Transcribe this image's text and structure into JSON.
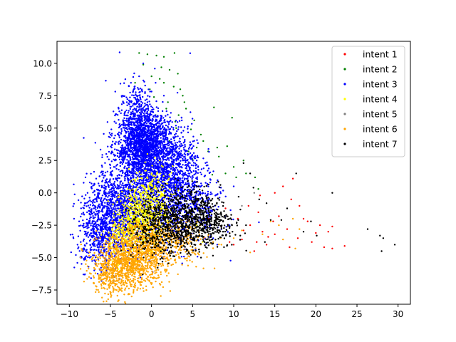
{
  "chart_data": {
    "type": "scatter",
    "title": "",
    "xlabel": "",
    "ylabel": "",
    "xlim": [
      -11.5,
      31.5
    ],
    "ylim": [
      -8.6,
      11.7
    ],
    "xticks": [
      -10,
      -5,
      0,
      5,
      10,
      15,
      20,
      25,
      30
    ],
    "yticks": [
      -7.5,
      -5.0,
      -2.5,
      0.0,
      2.5,
      5.0,
      7.5,
      10.0
    ],
    "xtick_labels": [
      "−10",
      "−5",
      "0",
      "5",
      "10",
      "15",
      "20",
      "25",
      "30"
    ],
    "ytick_labels": [
      "−7.5",
      "−5.0",
      "−2.5",
      "0.0",
      "2.5",
      "5.0",
      "7.5",
      "10.0"
    ],
    "grid": false,
    "legend_position": "top-right",
    "series": [
      {
        "name": "intent 1",
        "color": "#ff0000",
        "points": [
          [
            12.0,
            -2.5
          ],
          [
            13.5,
            -3.0
          ],
          [
            15.0,
            -3.2
          ],
          [
            16.5,
            -2.8
          ],
          [
            17.8,
            -3.5
          ],
          [
            19.0,
            -2.2
          ],
          [
            20.0,
            -3.1
          ],
          [
            21.0,
            -4.2
          ],
          [
            22.0,
            -4.3
          ],
          [
            23.5,
            -4.1
          ],
          [
            14.0,
            -4.0
          ],
          [
            11.0,
            -3.6
          ],
          [
            9.5,
            -3.8
          ],
          [
            10.5,
            -2.0
          ],
          [
            13.0,
            -1.5
          ],
          [
            15.5,
            -1.8
          ],
          [
            17.0,
            -0.5
          ],
          [
            16.0,
            0.5
          ],
          [
            18.5,
            -2.0
          ],
          [
            12.5,
            -4.5
          ],
          [
            11.8,
            -1.0
          ],
          [
            14.8,
            -2.2
          ],
          [
            9.0,
            -1.2
          ],
          [
            8.0,
            -3.0
          ],
          [
            7.0,
            -2.0
          ],
          [
            6.5,
            -3.5
          ],
          [
            10.0,
            -4.0
          ],
          [
            12.8,
            -3.8
          ],
          [
            16.8,
            -4.2
          ],
          [
            19.5,
            -3.8
          ],
          [
            20.5,
            -2.5
          ],
          [
            18.0,
            -1.0
          ],
          [
            15.0,
            0.0
          ],
          [
            13.2,
            -0.2
          ],
          [
            17.2,
            1.1
          ],
          [
            21.5,
            -3.0
          ],
          [
            22.0,
            -2.6
          ],
          [
            8.5,
            -2.6
          ],
          [
            11.2,
            -2.9
          ],
          [
            14.2,
            -3.4
          ]
        ],
        "clusters": []
      },
      {
        "name": "intent 2",
        "color": "#008000",
        "points": [
          [
            -1.5,
            10.8
          ],
          [
            -0.5,
            10.7
          ],
          [
            0.6,
            10.6
          ],
          [
            1.5,
            10.5
          ],
          [
            2.8,
            10.8
          ],
          [
            -1.0,
            9.9
          ],
          [
            1.2,
            9.7
          ],
          [
            2.2,
            9.5
          ],
          [
            3.2,
            9.2
          ],
          [
            0.0,
            9.0
          ],
          [
            1.5,
            8.5
          ],
          [
            2.7,
            8.2
          ],
          [
            -0.2,
            8.0
          ],
          [
            3.5,
            8.0
          ],
          [
            0.3,
            7.4
          ],
          [
            2.0,
            7.0
          ],
          [
            4.0,
            7.0
          ],
          [
            3.3,
            6.0
          ],
          [
            5.2,
            5.6
          ],
          [
            4.8,
            4.9
          ],
          [
            7.6,
            6.6
          ],
          [
            9.8,
            5.8
          ],
          [
            6.0,
            4.5
          ],
          [
            1.8,
            6.5
          ],
          [
            3.0,
            5.0
          ],
          [
            2.2,
            4.0
          ],
          [
            5.5,
            3.5
          ],
          [
            6.9,
            3.2
          ],
          [
            9.0,
            1.5
          ],
          [
            10.3,
            1.2
          ],
          [
            11.2,
            2.5
          ],
          [
            12.6,
            1.2
          ],
          [
            11.5,
            1.5
          ],
          [
            8.2,
            2.8
          ],
          [
            9.2,
            3.6
          ],
          [
            7.4,
            1.4
          ],
          [
            0.5,
            6.0
          ],
          [
            2.9,
            5.5
          ],
          [
            4.2,
            6.5
          ],
          [
            1.0,
            8.8
          ],
          [
            -2.0,
            8.5
          ],
          [
            6.3,
            4.0
          ],
          [
            5.0,
            2.6
          ],
          [
            4.5,
            3.2
          ],
          [
            10.0,
            2.0
          ],
          [
            13.0,
            0.3
          ],
          [
            8.0,
            3.5
          ],
          [
            3.8,
            7.5
          ]
        ],
        "clusters": []
      },
      {
        "name": "intent 3",
        "color": "#0000ff",
        "points": [
          [
            -9.5,
            -3.5
          ],
          [
            -9.0,
            -4.0
          ],
          [
            -8.5,
            -5.0
          ],
          [
            -8.0,
            -4.5
          ],
          [
            -7.5,
            -2.0
          ],
          [
            -7.0,
            -1.5
          ],
          [
            -6.5,
            0.0
          ],
          [
            -6.0,
            0.5
          ],
          [
            -7.0,
            -3.0
          ],
          [
            -8.0,
            -3.0
          ],
          [
            -6.0,
            2.0
          ],
          [
            -5.5,
            3.0
          ],
          [
            -5.0,
            4.5
          ],
          [
            -4.5,
            5.5
          ],
          [
            -4.0,
            6.5
          ],
          [
            -3.5,
            7.5
          ],
          [
            -2.5,
            8.5
          ],
          [
            -1.5,
            9.0
          ],
          [
            -1.0,
            10.0
          ],
          [
            -3.0,
            7.0
          ],
          [
            -7.5,
            0.8
          ],
          [
            -8.8,
            -2.2
          ],
          [
            -9.2,
            -4.8
          ],
          [
            -6.8,
            -5.5
          ],
          [
            -5.5,
            -6.0
          ],
          [
            -4.5,
            -6.5
          ],
          [
            3.5,
            -0.5
          ],
          [
            5.0,
            -1.5
          ],
          [
            6.5,
            -2.5
          ],
          [
            7.5,
            -3.5
          ],
          [
            8.0,
            -4.0
          ],
          [
            4.5,
            1.5
          ],
          [
            6.0,
            0.5
          ],
          [
            7.0,
            -0.5
          ],
          [
            9.0,
            -1.8
          ],
          [
            8.5,
            -2.8
          ],
          [
            2.5,
            3.5
          ],
          [
            3.8,
            2.5
          ],
          [
            1.5,
            7.5
          ],
          [
            0.5,
            8.5
          ],
          [
            -0.5,
            7.0
          ],
          [
            -2.0,
            6.0
          ],
          [
            5.5,
            2.5
          ],
          [
            7.2,
            1.0
          ],
          [
            9.5,
            -2.5
          ],
          [
            10.0,
            0.5
          ]
        ],
        "clusters": [
          {
            "cx": -1.0,
            "cy": 3.5,
            "sx": 1.6,
            "sy": 1.2,
            "n": 1300
          },
          {
            "cx": -4.0,
            "cy": -1.5,
            "sx": 1.8,
            "sy": 1.8,
            "n": 1100
          },
          {
            "cx": 0.5,
            "cy": 0.5,
            "sx": 2.2,
            "sy": 2.4,
            "n": 1000
          },
          {
            "cx": -1.5,
            "cy": 5.5,
            "sx": 1.2,
            "sy": 1.5,
            "n": 500
          },
          {
            "cx": 2.5,
            "cy": 2.0,
            "sx": 1.8,
            "sy": 1.6,
            "n": 600
          },
          {
            "cx": -6.5,
            "cy": -3.0,
            "sx": 1.2,
            "sy": 1.4,
            "n": 400
          },
          {
            "cx": 4.5,
            "cy": -1.0,
            "sx": 2.0,
            "sy": 1.4,
            "n": 350
          }
        ]
      },
      {
        "name": "intent 4",
        "color": "#ffff00",
        "points": [
          [
            -0.5,
            3.0
          ],
          [
            1.0,
            2.5
          ],
          [
            0.0,
            1.5
          ],
          [
            -2.0,
            1.0
          ],
          [
            2.0,
            1.0
          ],
          [
            -1.0,
            0.0
          ],
          [
            1.5,
            -0.5
          ],
          [
            -3.0,
            -1.0
          ],
          [
            3.5,
            -2.0
          ],
          [
            -4.0,
            -2.5
          ],
          [
            2.0,
            -3.5
          ],
          [
            -5.0,
            -4.0
          ],
          [
            -6.5,
            -5.0
          ],
          [
            0.5,
            -5.0
          ],
          [
            4.5,
            -3.0
          ],
          [
            -2.5,
            -4.5
          ],
          [
            5.5,
            -2.5
          ],
          [
            6.2,
            -3.8
          ],
          [
            0.0,
            -2.0
          ],
          [
            -1.5,
            -2.0
          ]
        ],
        "clusters": [
          {
            "cx": -1.0,
            "cy": -1.8,
            "sx": 1.4,
            "sy": 1.2,
            "n": 520
          },
          {
            "cx": -3.5,
            "cy": -3.5,
            "sx": 1.2,
            "sy": 1.0,
            "n": 200
          },
          {
            "cx": 0.5,
            "cy": -0.2,
            "sx": 1.3,
            "sy": 1.3,
            "n": 140
          }
        ]
      },
      {
        "name": "intent 5",
        "color": "#808080",
        "points": [
          [
            3.0,
            -2.5
          ],
          [
            5.0,
            -3.0
          ],
          [
            6.5,
            -1.5
          ],
          [
            2.0,
            -4.0
          ],
          [
            8.0,
            -2.0
          ],
          [
            11.0,
            -1.0
          ],
          [
            12.5,
            0.0
          ],
          [
            4.0,
            -1.0
          ],
          [
            -1.0,
            -3.0
          ],
          [
            7.0,
            -3.5
          ]
        ],
        "clusters": []
      },
      {
        "name": "intent 6",
        "color": "#ffa500",
        "points": [
          [
            -7.0,
            -7.0
          ],
          [
            -6.5,
            -7.5
          ],
          [
            -5.0,
            -7.8
          ],
          [
            -4.0,
            -7.3
          ],
          [
            -3.0,
            -7.0
          ],
          [
            -2.0,
            -6.5
          ],
          [
            -7.5,
            -6.2
          ],
          [
            -8.0,
            -5.5
          ],
          [
            -1.0,
            -6.2
          ],
          [
            0.5,
            -5.8
          ],
          [
            2.0,
            -5.2
          ],
          [
            3.0,
            -4.8
          ],
          [
            4.5,
            -4.5
          ],
          [
            6.0,
            -4.0
          ],
          [
            7.5,
            -3.8
          ],
          [
            8.5,
            -4.0
          ],
          [
            10.0,
            -3.5
          ],
          [
            12.0,
            -4.6
          ],
          [
            13.5,
            -3.2
          ],
          [
            15.5,
            -2.5
          ],
          [
            17.2,
            -2.0
          ],
          [
            17.5,
            -4.3
          ],
          [
            18.0,
            -2.8
          ],
          [
            16.0,
            -3.6
          ],
          [
            14.5,
            -2.2
          ],
          [
            11.0,
            -2.9
          ],
          [
            9.5,
            -3.1
          ],
          [
            -5.5,
            -4.8
          ],
          [
            -2.5,
            -5.5
          ],
          [
            0.0,
            -4.2
          ]
        ],
        "clusters": [
          {
            "cx": -2.5,
            "cy": -5.3,
            "sx": 2.0,
            "sy": 1.1,
            "n": 900
          },
          {
            "cx": -0.2,
            "cy": -3.8,
            "sx": 1.6,
            "sy": 1.1,
            "n": 420
          },
          {
            "cx": -5.0,
            "cy": -6.2,
            "sx": 1.2,
            "sy": 0.9,
            "n": 250
          },
          {
            "cx": 3.5,
            "cy": -3.8,
            "sx": 1.8,
            "sy": 0.9,
            "n": 180
          }
        ]
      },
      {
        "name": "intent 7",
        "color": "#000000",
        "points": [
          [
            26.3,
            -2.8
          ],
          [
            27.8,
            -3.3
          ],
          [
            28.2,
            -3.5
          ],
          [
            28.0,
            -4.5
          ],
          [
            29.6,
            -4.0
          ],
          [
            22.0,
            0.0
          ],
          [
            17.6,
            1.5
          ],
          [
            12.4,
            0.4
          ],
          [
            13.1,
            -0.5
          ],
          [
            14.5,
            -2.1
          ],
          [
            11.5,
            -2.5
          ],
          [
            15.8,
            -2.1
          ],
          [
            18.5,
            -3.0
          ],
          [
            19.4,
            -2.2
          ],
          [
            10.8,
            -3.3
          ],
          [
            9.7,
            -1.7
          ],
          [
            13.8,
            -3.8
          ],
          [
            16.5,
            -1.2
          ],
          [
            11.2,
            2.3
          ],
          [
            12.0,
            1.5
          ],
          [
            10.6,
            -0.3
          ],
          [
            8.7,
            -3.0
          ],
          [
            20.1,
            -3.3
          ],
          [
            14.0,
            -0.8
          ]
        ],
        "clusters": [
          {
            "cx": 3.5,
            "cy": -2.0,
            "sx": 2.4,
            "sy": 1.2,
            "n": 800
          },
          {
            "cx": 7.0,
            "cy": -2.3,
            "sx": 1.6,
            "sy": 1.0,
            "n": 260
          },
          {
            "cx": 0.5,
            "cy": -3.0,
            "sx": 1.5,
            "sy": 1.1,
            "n": 200
          }
        ]
      }
    ]
  }
}
